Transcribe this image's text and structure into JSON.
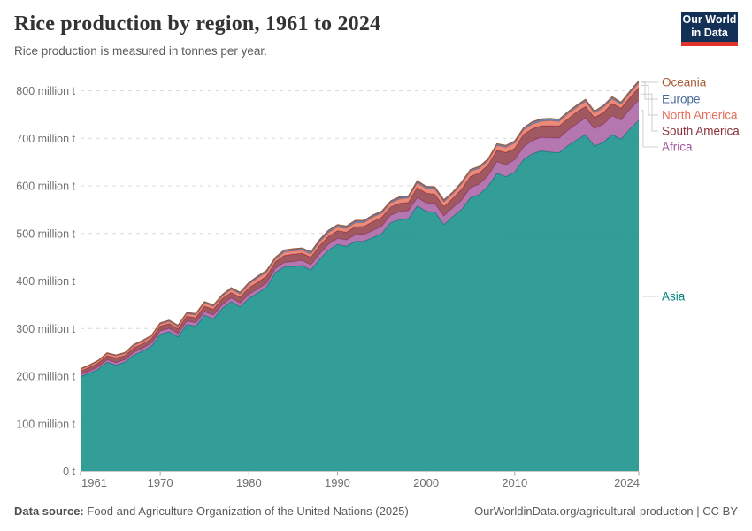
{
  "header": {
    "title": "Rice production by region, 1961 to 2024",
    "subtitle": "Rice production is measured in tonnes per year.",
    "logo_line1": "Our World",
    "logo_line2": "in Data"
  },
  "footer": {
    "source_label": "Data source:",
    "source_text": "Food and Agriculture Organization of the United Nations (2025)",
    "credit": "OurWorldinData.org/agricultural-production | CC BY"
  },
  "chart_data": {
    "type": "area",
    "stacked": true,
    "title": "Rice production by region, 1961 to 2024",
    "unit": "million tonnes per year",
    "grid": "dashed horizontal",
    "legend_position": "right",
    "ylim": [
      0,
      800
    ],
    "y_ticks": [
      {
        "value": 0,
        "label": "0 t"
      },
      {
        "value": 100,
        "label": "100 million t"
      },
      {
        "value": 200,
        "label": "200 million t"
      },
      {
        "value": 300,
        "label": "300 million t"
      },
      {
        "value": 400,
        "label": "400 million t"
      },
      {
        "value": 500,
        "label": "500 million t"
      },
      {
        "value": 600,
        "label": "600 million t"
      },
      {
        "value": 700,
        "label": "700 million t"
      },
      {
        "value": 800,
        "label": "800 million t"
      }
    ],
    "x_ticks": [
      1961,
      1970,
      1980,
      1990,
      2000,
      2010,
      2024
    ],
    "years": [
      1961,
      1962,
      1963,
      1964,
      1965,
      1966,
      1967,
      1968,
      1969,
      1970,
      1971,
      1972,
      1973,
      1974,
      1975,
      1976,
      1977,
      1978,
      1979,
      1980,
      1981,
      1982,
      1983,
      1984,
      1985,
      1986,
      1987,
      1988,
      1989,
      1990,
      1991,
      1992,
      1993,
      1994,
      1995,
      1996,
      1997,
      1998,
      1999,
      2000,
      2001,
      2002,
      2003,
      2004,
      2005,
      2006,
      2007,
      2008,
      2009,
      2010,
      2011,
      2012,
      2013,
      2014,
      2015,
      2016,
      2017,
      2018,
      2019,
      2020,
      2021,
      2022,
      2023,
      2024
    ],
    "series": [
      {
        "name": "Asia",
        "color": "#00847E",
        "values": [
          199.1,
          205.9,
          214.6,
          229.4,
          223.1,
          229.2,
          244.1,
          252.3,
          262.6,
          287.9,
          293.2,
          282.3,
          308.5,
          304.6,
          327.8,
          320.5,
          342.3,
          356.4,
          345.4,
          363.4,
          374.4,
          386.7,
          417.9,
          429.5,
          430.6,
          432.5,
          423.1,
          445.8,
          465.2,
          477.1,
          472.9,
          483.2,
          483.6,
          491.5,
          499.8,
          522.4,
          529.0,
          531.3,
          557.9,
          546.8,
          544.8,
          518.7,
          535.4,
          550.2,
          575.0,
          582.0,
          599.5,
          626.5,
          619.3,
          629.0,
          655.3,
          667.5,
          673.6,
          671.0,
          669.7,
          684.7,
          696.7,
          708.1,
          683.7,
          691.3,
          707.8,
          698.2,
          719.7,
          737.4
        ]
      },
      {
        "name": "Africa",
        "color": "#A2559C",
        "values": [
          4.4,
          4.6,
          4.9,
          5.1,
          5.3,
          5.4,
          5.9,
          6.2,
          6.6,
          6.9,
          7.1,
          7.0,
          7.1,
          7.5,
          7.7,
          7.8,
          7.9,
          8.0,
          8.3,
          8.6,
          8.9,
          8.7,
          8.9,
          9.5,
          10.1,
          10.6,
          10.9,
          11.7,
          12.2,
          12.6,
          13.4,
          13.8,
          14.2,
          14.7,
          15.3,
          16.0,
          16.4,
          16.7,
          17.4,
          17.5,
          17.8,
          18.0,
          18.6,
          19.6,
          20.7,
          21.7,
          22.0,
          24.2,
          24.8,
          26.0,
          26.6,
          27.6,
          28.3,
          30.0,
          30.6,
          32.3,
          33.6,
          34.8,
          36.5,
          38.0,
          39.5,
          40.2,
          41.5,
          42.5
        ]
      },
      {
        "name": "South America",
        "color": "#883039",
        "values": [
          6.9,
          7.7,
          7.9,
          8.4,
          9.9,
          8.3,
          9.4,
          9.3,
          9.1,
          10.1,
          9.8,
          9.9,
          10.4,
          10.5,
          11.3,
          12.1,
          12.7,
          11.3,
          12.2,
          13.6,
          14.1,
          14.6,
          13.5,
          14.6,
          15.4,
          15.0,
          16.1,
          17.0,
          16.6,
          15.7,
          16.2,
          16.8,
          17.0,
          18.5,
          18.8,
          17.5,
          17.8,
          17.1,
          20.9,
          20.5,
          19.8,
          19.5,
          19.5,
          23.0,
          24.0,
          23.2,
          22.2,
          24.1,
          26.1,
          23.5,
          26.6,
          25.0,
          24.5,
          25.3,
          25.4,
          23.7,
          25.2,
          23.8,
          23.5,
          24.5,
          26.0,
          25.0,
          24.5,
          26.5
        ]
      },
      {
        "name": "North America",
        "color": "#E56E5A",
        "values": [
          3.3,
          3.5,
          3.6,
          3.9,
          4.0,
          4.3,
          4.5,
          4.7,
          4.6,
          4.4,
          4.6,
          4.8,
          4.9,
          5.7,
          6.4,
          6.0,
          5.1,
          6.7,
          6.8,
          7.4,
          8.9,
          8.0,
          5.4,
          7.2,
          7.0,
          6.6,
          6.4,
          7.9,
          7.7,
          7.8,
          7.9,
          8.6,
          7.8,
          9.6,
          8.5,
          8.2,
          8.9,
          9.2,
          10.0,
          9.6,
          10.3,
          10.0,
          9.6,
          11.0,
          10.9,
          9.5,
          9.4,
          9.9,
          10.7,
          11.6,
          9.0,
          9.7,
          9.2,
          10.8,
          9.4,
          10.8,
          9.5,
          10.7,
          9.0,
          10.9,
          9.5,
          8.0,
          9.5,
          10.0
        ]
      },
      {
        "name": "Europe",
        "color": "#4C6A9C",
        "values": [
          1.7,
          1.8,
          1.9,
          2.0,
          2.0,
          2.1,
          2.3,
          2.2,
          2.3,
          2.4,
          2.5,
          2.6,
          2.7,
          2.7,
          2.8,
          2.6,
          2.9,
          3.0,
          3.1,
          3.3,
          3.4,
          3.6,
          3.7,
          3.9,
          4.0,
          4.1,
          4.2,
          4.3,
          4.4,
          4.3,
          4.1,
          4.0,
          3.7,
          3.5,
          3.4,
          3.4,
          3.5,
          3.3,
          3.4,
          3.5,
          3.5,
          3.5,
          3.5,
          3.6,
          3.6,
          3.6,
          3.7,
          3.8,
          4.0,
          4.2,
          4.3,
          4.3,
          4.2,
          4.1,
          4.2,
          4.2,
          4.2,
          4.0,
          4.1,
          4.2,
          4.2,
          3.9,
          3.8,
          4.0
        ]
      },
      {
        "name": "Oceania",
        "color": "#A65A32",
        "values": [
          0.2,
          0.2,
          0.2,
          0.2,
          0.2,
          0.2,
          0.3,
          0.3,
          0.3,
          0.3,
          0.3,
          0.4,
          0.4,
          0.5,
          0.5,
          0.5,
          0.6,
          0.6,
          0.7,
          0.7,
          0.8,
          0.9,
          0.6,
          0.8,
          0.9,
          0.7,
          0.8,
          0.8,
          0.9,
          1.0,
          1.0,
          1.1,
          1.2,
          1.2,
          1.2,
          1.0,
          1.4,
          1.4,
          1.4,
          1.1,
          1.8,
          1.3,
          0.4,
          0.6,
          0.3,
          1.0,
          0.2,
          0.1,
          0.1,
          0.2,
          0.7,
          0.9,
          1.2,
          0.8,
          0.7,
          0.3,
          0.8,
          0.6,
          0.2,
          0.1,
          0.5,
          0.7,
          0.5,
          0.6
        ]
      }
    ],
    "legend": [
      {
        "series": "Oceania",
        "label_y": 93,
        "elbow_x": 741
      },
      {
        "series": "Europe",
        "label_y": 112,
        "elbow_x": 729
      },
      {
        "series": "North America",
        "label_y": 130,
        "elbow_x": 733
      },
      {
        "series": "South America",
        "label_y": 148,
        "elbow_x": 737
      },
      {
        "series": "Africa",
        "label_y": 166,
        "elbow_x": 727
      },
      {
        "series": "Asia",
        "label_y": 335,
        "elbow_x": 730
      }
    ]
  }
}
